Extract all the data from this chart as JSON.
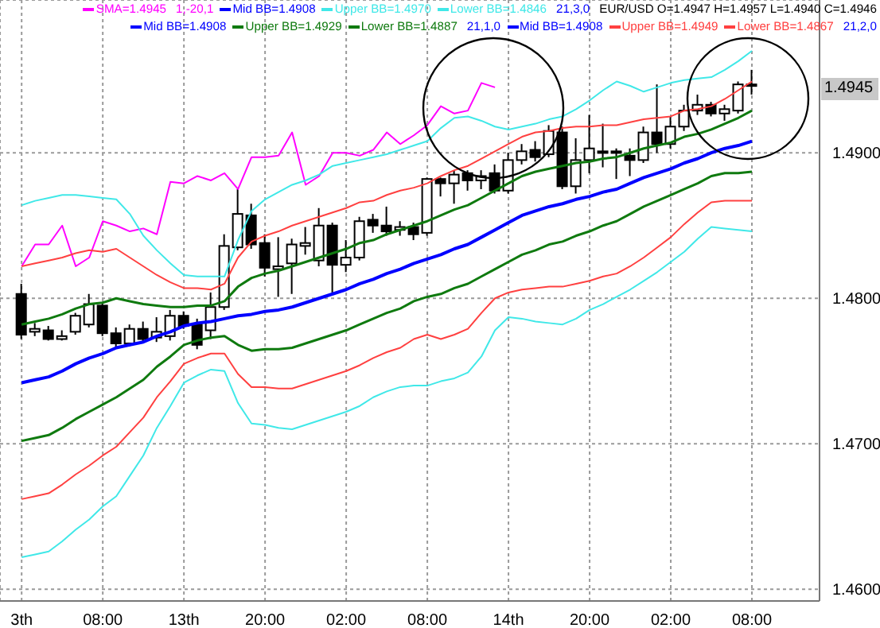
{
  "chart_data": {
    "type": "candlestick",
    "categories": [
      "3th",
      null,
      null,
      null,
      null,
      null,
      "08:00",
      null,
      null,
      null,
      null,
      null,
      "13th",
      null,
      null,
      null,
      null,
      null,
      "20:00",
      null,
      null,
      null,
      null,
      null,
      "02:00",
      null,
      null,
      null,
      null,
      null,
      "08:00",
      null,
      null,
      null,
      null,
      null,
      "14th",
      null,
      null,
      null,
      null,
      null,
      "20:00",
      null,
      null,
      null,
      null,
      null,
      "02:00",
      null,
      null,
      null,
      null,
      null,
      "08:00"
    ],
    "ohlc": [
      [
        1.4803,
        1.481,
        1.4772,
        1.4775
      ],
      [
        1.4777,
        1.4783,
        1.4774,
        1.4779
      ],
      [
        1.4778,
        1.4781,
        1.4771,
        1.4772
      ],
      [
        1.4772,
        1.4778,
        1.4771,
        1.4774
      ],
      [
        1.4777,
        1.479,
        1.4775,
        1.4788
      ],
      [
        1.4782,
        1.4803,
        1.478,
        1.4796
      ],
      [
        1.4795,
        1.4797,
        1.4774,
        1.4776
      ],
      [
        1.4776,
        1.478,
        1.4766,
        1.4769
      ],
      [
        1.4769,
        1.4782,
        1.4767,
        1.4779
      ],
      [
        1.4779,
        1.4784,
        1.4769,
        1.4772
      ],
      [
        1.4773,
        1.4787,
        1.477,
        1.4777
      ],
      [
        1.4774,
        1.4792,
        1.4771,
        1.4788
      ],
      [
        1.4788,
        1.4791,
        1.4779,
        1.4781
      ],
      [
        1.4782,
        1.4786,
        1.4765,
        1.4768
      ],
      [
        1.4778,
        1.4804,
        1.4772,
        1.4794
      ],
      [
        1.4794,
        1.4844,
        1.4792,
        1.4836
      ],
      [
        1.4835,
        1.4875,
        1.4833,
        1.4858
      ],
      [
        1.4857,
        1.4865,
        1.4834,
        1.4837
      ],
      [
        1.4838,
        1.4844,
        1.4815,
        1.4821
      ],
      [
        1.482,
        1.4842,
        1.4801,
        1.4822
      ],
      [
        1.4824,
        1.4841,
        1.4803,
        1.4837
      ],
      [
        1.4836,
        1.4849,
        1.483,
        1.4838
      ],
      [
        1.4826,
        1.4862,
        1.4822,
        1.485
      ],
      [
        1.485,
        1.4852,
        1.4804,
        1.4823
      ],
      [
        1.4823,
        1.484,
        1.4818,
        1.4828
      ],
      [
        1.4828,
        1.4856,
        1.4826,
        1.4853
      ],
      [
        1.4854,
        1.4858,
        1.4845,
        1.485
      ],
      [
        1.485,
        1.4863,
        1.4843,
        1.4846
      ],
      [
        1.4847,
        1.4853,
        1.4843,
        1.4849
      ],
      [
        1.4849,
        1.4852,
        1.484,
        1.4844
      ],
      [
        1.4845,
        1.4883,
        1.4843,
        1.4882
      ],
      [
        1.4882,
        1.4883,
        1.487,
        1.4879
      ],
      [
        1.4879,
        1.4888,
        1.4865,
        1.4885
      ],
      [
        1.4886,
        1.4888,
        1.4874,
        1.4881
      ],
      [
        1.4881,
        1.4888,
        1.4875,
        1.4884
      ],
      [
        1.4886,
        1.4892,
        1.4872,
        1.4874
      ],
      [
        1.4874,
        1.49,
        1.4872,
        1.4895
      ],
      [
        1.4895,
        1.4906,
        1.4892,
        1.4901
      ],
      [
        1.4902,
        1.4908,
        1.4894,
        1.4897
      ],
      [
        1.4899,
        1.4919,
        1.4897,
        1.4915
      ],
      [
        1.4914,
        1.4918,
        1.4875,
        1.4877
      ],
      [
        1.4877,
        1.491,
        1.4872,
        1.4895
      ],
      [
        1.4895,
        1.4926,
        1.4886,
        1.4903
      ],
      [
        1.4901,
        1.492,
        1.489,
        1.49
      ],
      [
        1.49,
        1.4903,
        1.4882,
        1.4901
      ],
      [
        1.4898,
        1.4903,
        1.4884,
        1.4895
      ],
      [
        1.4895,
        1.4918,
        1.4893,
        1.4914
      ],
      [
        1.4914,
        1.4947,
        1.49,
        1.4906
      ],
      [
        1.4906,
        1.4925,
        1.4903,
        1.4918
      ],
      [
        1.4918,
        1.4933,
        1.4915,
        1.4929
      ],
      [
        1.4929,
        1.494,
        1.4926,
        1.4933
      ],
      [
        1.4933,
        1.4935,
        1.4925,
        1.4927
      ],
      [
        1.4927,
        1.4933,
        1.4922,
        1.493
      ],
      [
        1.4929,
        1.4949,
        1.4927,
        1.4947
      ],
      [
        1.4947,
        1.4957,
        1.494,
        1.4946
      ]
    ],
    "series": [
      {
        "type": "line",
        "name": "SMA=1.4945",
        "color": "#ff00ff",
        "values": [
          1.4822,
          1.4837,
          1.4837,
          1.485,
          1.4822,
          1.4828,
          1.4853,
          1.485,
          1.4846,
          1.4848,
          1.4844,
          1.488,
          1.4879,
          1.4884,
          1.4881,
          1.4886,
          1.4875,
          1.4897,
          1.4897,
          1.4898,
          1.4914,
          1.4878,
          1.4884,
          1.49,
          1.49,
          1.4898,
          1.4902,
          1.4914,
          1.4906,
          1.4912,
          1.4919,
          1.4932,
          1.4927,
          1.4929,
          1.4948,
          1.4945,
          null,
          null,
          null,
          null,
          null,
          null,
          null,
          null,
          null,
          null,
          null,
          null,
          null,
          null,
          null,
          null,
          null,
          null,
          null
        ]
      },
      {
        "type": "line",
        "name": "Mid BB=1.4908",
        "color": "#0000ff",
        "values": [
          1.4742,
          1.4744,
          1.4746,
          1.475,
          1.4755,
          1.4759,
          1.4762,
          1.4766,
          1.4768,
          1.477,
          1.4774,
          1.4777,
          1.4781,
          1.4783,
          1.4784,
          1.4786,
          1.4788,
          1.4789,
          1.4791,
          1.4792,
          1.4794,
          1.4797,
          1.48,
          1.4803,
          1.4806,
          1.481,
          1.4813,
          1.4817,
          1.482,
          1.4824,
          1.4827,
          1.483,
          1.4834,
          1.4837,
          1.4842,
          1.4847,
          1.4852,
          1.4857,
          1.486,
          1.4863,
          1.4865,
          1.4868,
          1.487,
          1.4873,
          1.4875,
          1.4879,
          1.4883,
          1.4886,
          1.4889,
          1.4893,
          1.4896,
          1.49,
          1.4903,
          1.4905,
          1.4908
        ]
      },
      {
        "type": "line",
        "name": "Upper BB=1.4970",
        "color": "#40e8e8",
        "values": [
          1.4864,
          1.4867,
          1.4869,
          1.4871,
          1.4871,
          1.487,
          1.4869,
          1.4868,
          1.4858,
          1.4843,
          1.4833,
          1.4824,
          1.4816,
          1.4815,
          1.4815,
          1.4815,
          1.484,
          1.486,
          1.4868,
          1.4873,
          1.4878,
          1.4881,
          1.4885,
          1.4891,
          1.4893,
          1.4895,
          1.4897,
          1.4899,
          1.4902,
          1.4905,
          1.4908,
          1.4917,
          1.4924,
          1.4925,
          1.4922,
          1.4918,
          1.4916,
          1.4918,
          1.492,
          1.4923,
          1.4925,
          1.493,
          1.4936,
          1.4943,
          1.4949,
          1.4946,
          1.4942,
          1.4945,
          1.4948,
          1.495,
          1.4951,
          1.4952,
          1.4957,
          1.4963,
          1.497
        ]
      },
      {
        "type": "line",
        "name": "Lower BB=1.4846",
        "color": "#40e8e8",
        "values": [
          1.4622,
          1.4624,
          1.4626,
          1.4633,
          1.4641,
          1.4648,
          1.4657,
          1.4664,
          1.4678,
          1.4692,
          1.4711,
          1.4726,
          1.4742,
          1.4747,
          1.4751,
          1.475,
          1.4728,
          1.4714,
          1.4713,
          1.4711,
          1.471,
          1.4713,
          1.4716,
          1.4719,
          1.4722,
          1.4726,
          1.4732,
          1.4736,
          1.4739,
          1.474,
          1.474,
          1.4743,
          1.4745,
          1.4749,
          1.476,
          1.4778,
          1.4787,
          1.4786,
          1.4784,
          1.4783,
          1.4782,
          1.4786,
          1.4792,
          1.4796,
          1.4801,
          1.4806,
          1.4812,
          1.4818,
          1.4825,
          1.4832,
          1.4841,
          1.4849,
          1.4848,
          1.4847,
          1.4846
        ]
      },
      {
        "type": "line",
        "name": "Upper BB=1.4929",
        "color": "#0f7a0f",
        "values": [
          1.4782,
          1.4784,
          1.4786,
          1.4789,
          1.4793,
          1.4796,
          1.4797,
          1.48,
          1.4798,
          1.4796,
          1.4795,
          1.4794,
          1.4794,
          1.4795,
          1.4795,
          1.4798,
          1.4808,
          1.4814,
          1.4817,
          1.4819,
          1.4822,
          1.4825,
          1.4828,
          1.4831,
          1.4834,
          1.4838,
          1.484,
          1.4844,
          1.4847,
          1.485,
          1.4853,
          1.4857,
          1.4861,
          1.4864,
          1.4869,
          1.4874,
          1.4879,
          1.4884,
          1.4887,
          1.4889,
          1.4891,
          1.4893,
          1.4894,
          1.4896,
          1.4897,
          1.49,
          1.4903,
          1.4905,
          1.4907,
          1.4911,
          1.4913,
          1.4916,
          1.492,
          1.4924,
          1.4929
        ]
      },
      {
        "type": "line",
        "name": "Lower BB=1.4887",
        "color": "#0f7a0f",
        "values": [
          1.4702,
          1.4704,
          1.4706,
          1.4711,
          1.4717,
          1.4722,
          1.4727,
          1.4732,
          1.4738,
          1.4744,
          1.4753,
          1.476,
          1.4768,
          1.4771,
          1.4773,
          1.4774,
          1.4768,
          1.4764,
          1.4765,
          1.4765,
          1.4766,
          1.4769,
          1.4772,
          1.4775,
          1.4778,
          1.4782,
          1.4786,
          1.479,
          1.4793,
          1.4798,
          1.4801,
          1.4803,
          1.4807,
          1.481,
          1.4815,
          1.482,
          1.4825,
          1.483,
          1.4833,
          1.4837,
          1.4839,
          1.4843,
          1.4846,
          1.485,
          1.4853,
          1.4858,
          1.4863,
          1.4867,
          1.4871,
          1.4875,
          1.4879,
          1.4884,
          1.4886,
          1.4886,
          1.4887
        ]
      },
      {
        "type": "line",
        "name": "Upper BB=1.4949",
        "color": "#ff4040",
        "values": [
          1.4822,
          1.4824,
          1.4826,
          1.4828,
          1.4831,
          1.4833,
          1.4832,
          1.4834,
          1.4828,
          1.4822,
          1.4816,
          1.4811,
          1.4807,
          1.4807,
          1.4806,
          1.481,
          1.4828,
          1.4839,
          1.4843,
          1.4846,
          1.485,
          1.4853,
          1.4856,
          1.4859,
          1.4862,
          1.4866,
          1.4867,
          1.4871,
          1.4874,
          1.4876,
          1.4879,
          1.4884,
          1.4888,
          1.4891,
          1.4896,
          1.4901,
          1.4906,
          1.4911,
          1.4914,
          1.4915,
          1.4917,
          1.4918,
          1.4918,
          1.4919,
          1.4919,
          1.4921,
          1.4923,
          1.4924,
          1.4925,
          1.4929,
          1.493,
          1.4932,
          1.4937,
          1.4943,
          1.4949
        ]
      },
      {
        "type": "line",
        "name": "Lower BB=1.4867",
        "color": "#ff4040",
        "values": [
          1.4662,
          1.4664,
          1.4666,
          1.4672,
          1.4679,
          1.4685,
          1.4692,
          1.4698,
          1.4708,
          1.4718,
          1.4732,
          1.4743,
          1.4755,
          1.4759,
          1.4762,
          1.4762,
          1.4748,
          1.4739,
          1.4739,
          1.4738,
          1.4738,
          1.4741,
          1.4744,
          1.4747,
          1.475,
          1.4754,
          1.4759,
          1.4763,
          1.4766,
          1.4772,
          1.4775,
          1.4772,
          1.4775,
          1.4779,
          1.479,
          1.48,
          1.4804,
          1.4806,
          1.4807,
          1.4808,
          1.4808,
          1.481,
          1.4812,
          1.4815,
          1.4817,
          1.4822,
          1.4828,
          1.4835,
          1.4842,
          1.4851,
          1.4859,
          1.4866,
          1.4867,
          1.4867,
          1.4867
        ]
      }
    ],
    "ylim": [
      1.4592,
      1.5005
    ],
    "yticks": [
      {
        "value": 1.46,
        "label": "1.4600"
      },
      {
        "value": 1.47,
        "label": "1.4700"
      },
      {
        "value": 1.48,
        "label": "1.4800"
      },
      {
        "value": 1.49,
        "label": "1.4900"
      }
    ],
    "annotations": [
      "1,-20,1",
      "21,3,0",
      "EUR/USD O=1.4947 H=1.4957 L=1.4940 C=1.4946",
      "21,1,0",
      "21,2,0",
      "1.4945"
    ],
    "grid": true,
    "legend": "top right"
  }
}
